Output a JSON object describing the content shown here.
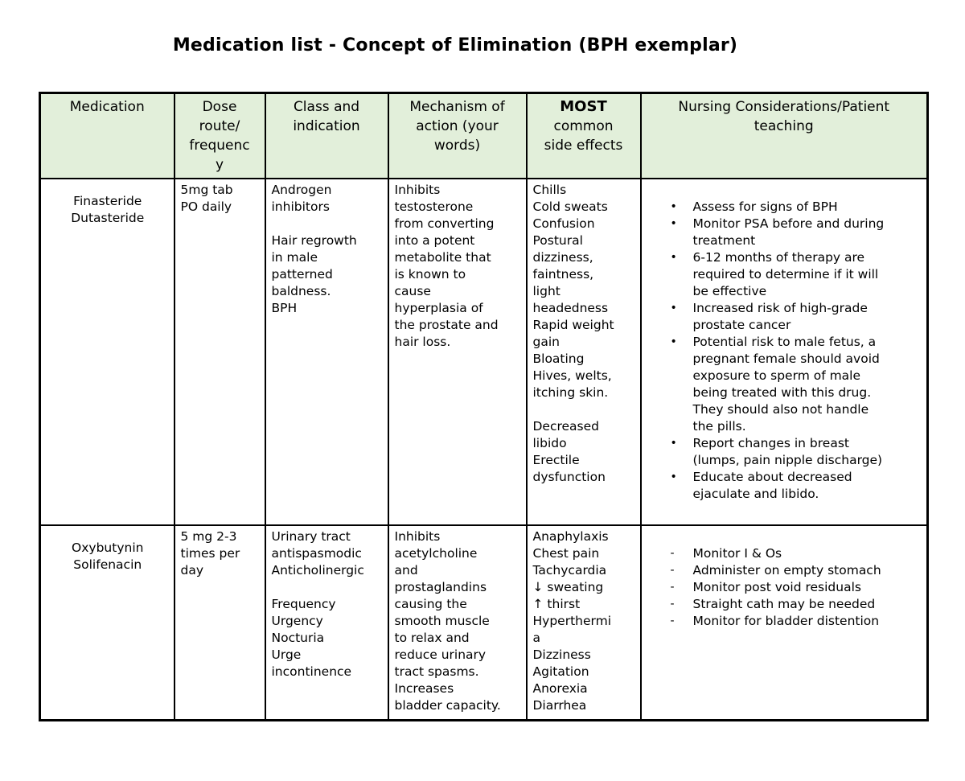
{
  "title": "Medication list - Concept of Elimination (BPH exemplar)",
  "colors": {
    "header_bg": "#e2efda",
    "border": "#000000",
    "page_bg": "#ffffff",
    "text": "#000000"
  },
  "table": {
    "headers": {
      "medication": "Medication",
      "dose": "Dose\nroute/\nfrequenc\ny",
      "class_indication": "Class and\nindication",
      "mechanism": "Mechanism of\naction (your\nwords)",
      "side_effects_bold": "MOST",
      "side_effects_rest": "common\nside effects",
      "nursing": "Nursing Considerations/Patient\nteaching"
    },
    "rows": [
      {
        "medication": "Finasteride\nDutasteride",
        "dose": "5mg tab\nPO daily",
        "class_indication": "Androgen\ninhibitors\n\nHair regrowth\nin male\npatterned\nbaldness.\nBPH",
        "mechanism": "Inhibits\ntestosterone\nfrom converting\ninto a potent\nmetabolite that\nis known to\ncause\nhyperplasia of\nthe prostate and\nhair loss.",
        "side_effects": "Chills\nCold sweats\nConfusion\nPostural\ndizziness,\nfaintness,\nlight\nheadedness\nRapid weight\ngain\nBloating\nHives, welts,\nitching skin.\n\nDecreased\nlibido\nErectile\ndysfunction",
        "nursing_marker": "•",
        "nursing_items": [
          "Assess for signs of BPH",
          "Monitor PSA before and during\ntreatment",
          "6-12 months of therapy are\nrequired to determine if it will\nbe effective",
          "Increased risk of high-grade\nprostate cancer",
          "Potential risk to male fetus, a\npregnant female should avoid\nexposure to sperm of male\nbeing treated with this drug.\nThey should also not handle\nthe pills.",
          "Report changes in breast\n(lumps, pain nipple discharge)",
          "Educate about decreased\nejaculate and libido."
        ]
      },
      {
        "medication": "Oxybutynin\nSolifenacin",
        "dose": "5 mg 2-3\ntimes per\nday",
        "class_indication": "Urinary tract\nantispasmodic\nAnticholinergic\n\nFrequency\nUrgency\nNocturia\nUrge\nincontinence",
        "mechanism": "Inhibits\nacetylcholine\nand\nprostaglandins\ncausing the\nsmooth muscle\nto relax and\nreduce urinary\ntract spasms.\nIncreases\nbladder capacity.",
        "side_effects": "Anaphylaxis\nChest pain\nTachycardia\n↓ sweating\n↑ thirst\nHyperthermi\na\nDizziness\nAgitation\nAnorexia\nDiarrhea",
        "nursing_marker": "-",
        "nursing_items": [
          "Monitor I & Os",
          "Administer on empty stomach",
          "Monitor post void residuals",
          "Straight cath may be needed",
          "Monitor for bladder distention"
        ]
      }
    ]
  }
}
